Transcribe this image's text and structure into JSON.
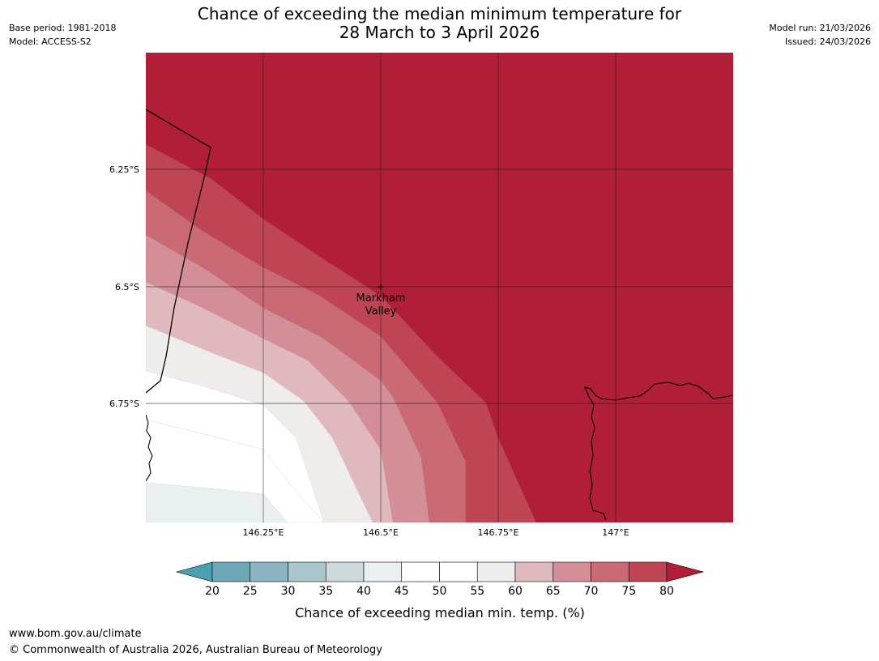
{
  "header": {
    "base_period": "Base period: 1981-2018",
    "model": "Model: ACCESS-S2",
    "model_run": "Model run: 21/03/2026",
    "issued": "Issued: 24/03/2026",
    "title_line1": "Chance of exceeding the median minimum temperature for",
    "title_line2": "28 March to 3 April 2026"
  },
  "map": {
    "lat_labels": [
      "6.25°S",
      "6.5°S",
      "6.75°S"
    ],
    "lon_labels": [
      "146.25°E",
      "146.5°E",
      "146.75°E",
      "147°E"
    ],
    "place": {
      "name_line1": "Markham",
      "name_line2": "Valley",
      "lat": "6.5°S",
      "lon": "146.5°E"
    }
  },
  "colorbar": {
    "title": "Chance of exceeding median min. temp. (%)",
    "ticks": [
      "20",
      "25",
      "30",
      "35",
      "40",
      "45",
      "50",
      "55",
      "60",
      "65",
      "70",
      "75",
      "80"
    ],
    "colors": {
      "below_20": "#4aa1b2",
      "20_25": "#6ba9b9",
      "25_30": "#8bb5c2",
      "30_35": "#a9c6cc",
      "35_40": "#cfdadd",
      "40_45": "#eaf0f1",
      "45_50": "#ffffff",
      "50_55": "#ffffff",
      "55_60": "#eeedeb",
      "60_65": "#e0b9bf",
      "65_70": "#d48e97",
      "70_75": "#ca6a74",
      "75_80": "#c04554",
      "above_80": "#b01e38"
    }
  },
  "footer": {
    "url": "www.bom.gov.au/climate",
    "copyright": "© Commonwealth of Australia 2026, Australian Bureau of Meteorology"
  }
}
